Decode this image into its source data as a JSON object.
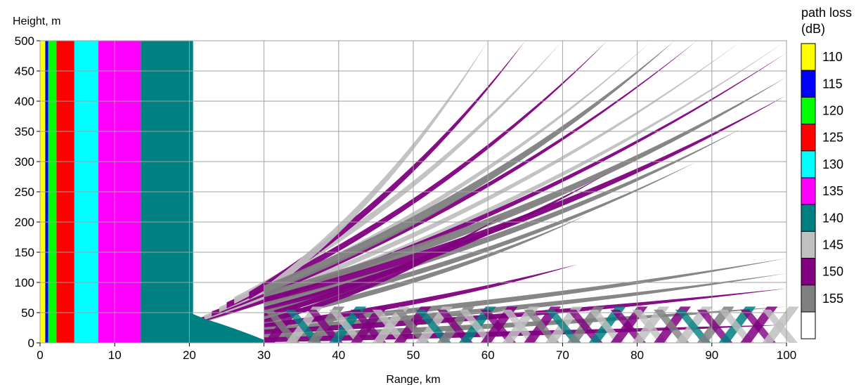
{
  "chart_data": {
    "type": "heatmap",
    "xlabel": "Range, km",
    "ylabel": "Height, m",
    "xlim": [
      0,
      100
    ],
    "ylim": [
      0,
      500
    ],
    "x_ticks": [
      0,
      10,
      20,
      30,
      40,
      50,
      60,
      70,
      80,
      90,
      100
    ],
    "y_ticks": [
      0,
      50,
      100,
      150,
      200,
      250,
      300,
      350,
      400,
      450,
      500
    ],
    "grid": true,
    "legend": {
      "title_line1": "path loss",
      "title_line2": "(dB)",
      "placement": "right",
      "levels": [
        {
          "label": "110",
          "color": "#ffff00"
        },
        {
          "label": "115",
          "color": "#0000ff"
        },
        {
          "label": "120",
          "color": "#00ff00"
        },
        {
          "label": "125",
          "color": "#ff0000"
        },
        {
          "label": "130",
          "color": "#00ffff"
        },
        {
          "label": "135",
          "color": "#ff00ff"
        },
        {
          "label": "140",
          "color": "#008080"
        },
        {
          "label": "145",
          "color": "#c0c0c0"
        },
        {
          "label": "150",
          "color": "#800080"
        },
        {
          "label": "155",
          "color": "#808080"
        },
        {
          "label": "",
          "color": "#ffffff"
        }
      ]
    },
    "vertical_bands": [
      {
        "x": [
          0,
          0.7
        ],
        "level": "110"
      },
      {
        "x": [
          0.7,
          1.1
        ],
        "level": "115"
      },
      {
        "x": [
          1.1,
          2.2
        ],
        "level": "120"
      },
      {
        "x": [
          2.2,
          4.6
        ],
        "level": "125"
      },
      {
        "x": [
          4.6,
          7.8
        ],
        "level": "130"
      },
      {
        "x": [
          7.8,
          13.5
        ],
        "level": "135"
      },
      {
        "x": [
          13.5,
          20.5
        ],
        "level": "140"
      }
    ],
    "lobes": [
      {
        "base": [
          20,
          30
        ],
        "tip": [
          100,
          500
        ],
        "level": "145"
      },
      {
        "base": [
          21,
          36
        ],
        "tip": [
          100,
          480
        ],
        "level": "150"
      },
      {
        "base": [
          22,
          42
        ],
        "tip": [
          94,
          500
        ],
        "level": "145"
      },
      {
        "base": [
          23,
          48
        ],
        "tip": [
          88,
          500
        ],
        "level": "150"
      },
      {
        "base": [
          24,
          55
        ],
        "tip": [
          82,
          500
        ],
        "level": "145"
      },
      {
        "base": [
          25,
          62
        ],
        "tip": [
          76,
          500
        ],
        "level": "150"
      },
      {
        "base": [
          26,
          70
        ],
        "tip": [
          70,
          500
        ],
        "level": "145"
      },
      {
        "base": [
          28,
          78
        ],
        "tip": [
          65,
          500
        ],
        "level": "150"
      },
      {
        "base": [
          30,
          85
        ],
        "tip": [
          60,
          500
        ],
        "level": "145"
      },
      {
        "base": [
          30,
          88
        ],
        "tip": [
          85,
          500
        ],
        "level": "155"
      },
      {
        "base": [
          30,
          78
        ],
        "tip": [
          100,
          440
        ],
        "level": "155"
      },
      {
        "base": [
          30,
          70
        ],
        "tip": [
          100,
          410
        ],
        "level": "150"
      },
      {
        "base": [
          30,
          62
        ],
        "tip": [
          94,
          355
        ],
        "level": "155"
      },
      {
        "base": [
          30,
          55
        ],
        "tip": [
          76,
          280
        ],
        "level": "150"
      },
      {
        "base": [
          30,
          50
        ],
        "tip": [
          88,
          300
        ],
        "level": "155"
      },
      {
        "base": [
          30,
          45
        ],
        "tip": [
          62,
          210
        ],
        "level": "150"
      },
      {
        "base": [
          30,
          40
        ],
        "tip": [
          73,
          210
        ],
        "level": "155"
      },
      {
        "base": [
          30,
          35
        ],
        "tip": [
          58,
          180
        ],
        "level": "150"
      },
      {
        "base": [
          30,
          30
        ],
        "tip": [
          100,
          140
        ],
        "level": "155"
      },
      {
        "base": [
          30,
          28
        ],
        "tip": [
          72,
          130
        ],
        "level": "150"
      },
      {
        "base": [
          30,
          22
        ],
        "tip": [
          100,
          115
        ],
        "level": "155"
      },
      {
        "base": [
          30,
          18
        ],
        "tip": [
          100,
          90
        ],
        "level": "150"
      },
      {
        "base": [
          30,
          10
        ],
        "tip": [
          100,
          60
        ],
        "level": "155"
      },
      {
        "base": [
          30,
          5
        ],
        "tip": [
          100,
          30
        ],
        "level": "150"
      }
    ]
  }
}
